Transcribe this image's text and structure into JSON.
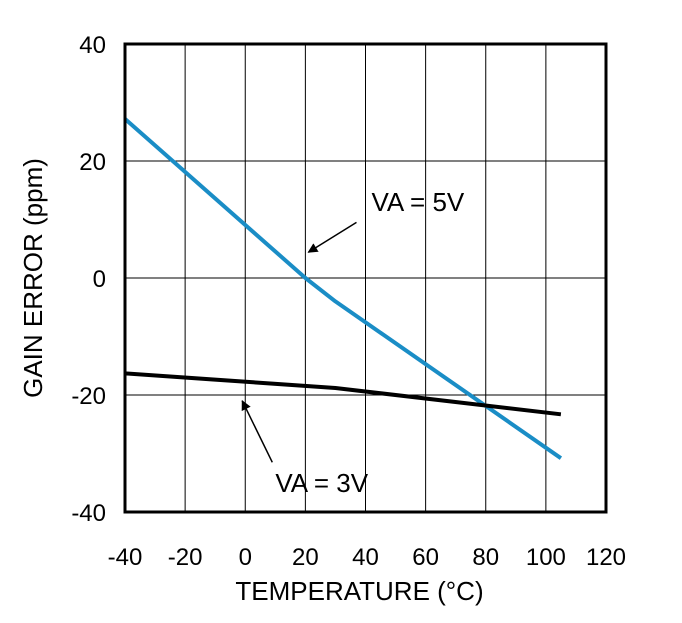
{
  "chart_data": {
    "type": "line",
    "title": "",
    "xlabel": "TEMPERATURE (°C)",
    "ylabel": "GAIN ERROR (ppm)",
    "xlim": [
      -40,
      120
    ],
    "ylim": [
      -40,
      40
    ],
    "x_ticks": [
      -40,
      -20,
      0,
      20,
      40,
      60,
      80,
      100,
      120
    ],
    "y_ticks": [
      -40,
      -20,
      0,
      20,
      40
    ],
    "x_grid": [
      -20,
      0,
      20,
      40,
      60,
      80,
      100
    ],
    "y_grid": [
      -20,
      0,
      20
    ],
    "grid": true,
    "series": [
      {
        "name": "VA = 5V",
        "color": "#1a8dc6",
        "x": [
          -40,
          20,
          30,
          105
        ],
        "y": [
          27.2,
          0,
          -4,
          -30.8
        ]
      },
      {
        "name": "VA = 3V",
        "color": "#000000",
        "x": [
          -40,
          30,
          105
        ],
        "y": [
          -16.3,
          -18.8,
          -23.3
        ]
      }
    ],
    "annotations": [
      {
        "text": "VA = 5V",
        "x": 42,
        "y": 13,
        "arrow_from": [
          37,
          9.5
        ],
        "arrow_to": [
          21,
          4.4
        ]
      },
      {
        "text": "VA = 3V",
        "x": 10,
        "y": -35,
        "arrow_from": [
          9,
          -31.5
        ],
        "arrow_to": [
          -1,
          -21
        ]
      }
    ]
  }
}
